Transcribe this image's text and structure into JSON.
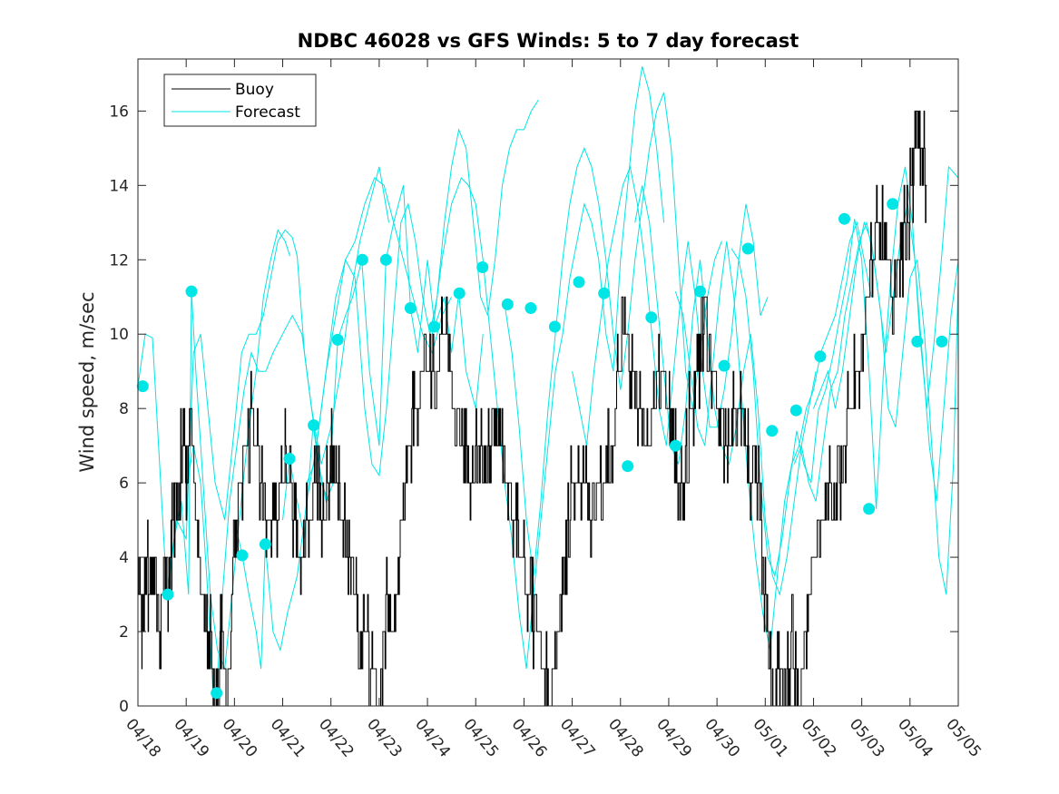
{
  "chart_data": {
    "type": "line",
    "title": "NDBC 46028 vs GFS Winds: 5 to 7 day forecast",
    "xlabel": "",
    "ylabel": "Wind speed, m/sec",
    "xlim": [
      0,
      17
    ],
    "ylim": [
      0,
      17.4
    ],
    "x_tick_labels": [
      "04/18",
      "04/19",
      "04/20",
      "04/21",
      "04/22",
      "04/23",
      "04/24",
      "04/25",
      "04/26",
      "04/27",
      "04/28",
      "04/29",
      "04/30",
      "05/01",
      "05/02",
      "05/03",
      "05/04",
      "05/05"
    ],
    "y_ticks": [
      0,
      2,
      4,
      6,
      8,
      10,
      12,
      14,
      16
    ],
    "grid": false,
    "legend_position": "top-left",
    "colors": {
      "buoy": "#000000",
      "forecast": "#00e5e5",
      "axes": "#262626"
    },
    "buoy_anchor_points": {
      "x": [
        0.0,
        0.08,
        0.15,
        0.25,
        0.35,
        0.45,
        0.55,
        0.65,
        0.72,
        0.82,
        0.95,
        1.02,
        1.1,
        1.2,
        1.32,
        1.45,
        1.55,
        1.62,
        1.72,
        1.85,
        1.98,
        2.1,
        2.25,
        2.4,
        2.55,
        2.7,
        2.85,
        3.0,
        3.12,
        3.25,
        3.4,
        3.55,
        3.7,
        3.85,
        4.0,
        4.1,
        4.25,
        4.4,
        4.5,
        4.6,
        4.7,
        4.85,
        5.0,
        5.15,
        5.3,
        5.45,
        5.6,
        5.75,
        5.95,
        6.15,
        6.35,
        6.55,
        6.75,
        6.9,
        7.05,
        7.2,
        7.35,
        7.5,
        7.65,
        7.8,
        7.95,
        8.1,
        8.25,
        8.4,
        8.55,
        8.7,
        8.85,
        9.0,
        9.2,
        9.4,
        9.6,
        9.8,
        9.95,
        10.1,
        10.25,
        10.4,
        10.55,
        10.7,
        10.85,
        11.0,
        11.1,
        11.2,
        11.3,
        11.45,
        11.6,
        11.75,
        11.9,
        12.05,
        12.2,
        12.35,
        12.5,
        12.6,
        12.7,
        12.8,
        12.9,
        13.0,
        13.1,
        13.2,
        13.3,
        13.4,
        13.55,
        13.7,
        13.85,
        14.0,
        14.15,
        14.3,
        14.45,
        14.6,
        14.75,
        14.9,
        15.05,
        15.2,
        15.35,
        15.5,
        15.65,
        15.8,
        15.95,
        16.05,
        16.15,
        16.25,
        16.35
      ],
      "y": [
        4,
        2,
        4,
        3,
        4,
        2,
        4,
        3,
        5,
        6,
        7,
        6,
        8,
        5,
        3,
        2,
        1,
        0,
        2,
        0,
        4,
        6,
        7,
        8,
        6,
        5,
        5,
        7,
        6,
        5,
        4,
        5,
        6,
        5,
        7,
        6,
        5,
        4,
        3,
        2,
        2,
        1,
        0,
        3,
        2,
        5,
        7,
        8,
        9,
        9,
        10,
        8,
        7,
        6,
        7,
        6,
        8,
        7,
        6,
        5,
        4,
        3,
        2,
        1,
        0,
        2,
        4,
        6,
        6,
        5,
        6,
        7,
        9,
        10,
        9,
        8,
        7,
        8,
        9,
        8,
        7,
        6,
        6,
        8,
        9,
        11,
        9,
        8,
        7,
        8,
        8,
        7,
        6,
        7,
        5,
        3,
        1,
        0,
        1,
        0,
        2,
        0,
        2,
        4,
        5,
        6,
        5,
        7,
        8,
        9,
        10,
        12,
        13,
        12,
        11,
        12,
        13,
        14,
        16,
        15,
        14
      ]
    },
    "forecast_dots": {
      "x": [
        0.1,
        0.62,
        1.11,
        1.63,
        2.16,
        2.64,
        3.14,
        3.64,
        4.14,
        4.65,
        5.14,
        5.65,
        6.14,
        6.66,
        7.14,
        7.66,
        8.14,
        8.64,
        9.14,
        9.66,
        10.15,
        10.64,
        11.14,
        11.65,
        12.15,
        12.64,
        13.14,
        13.64,
        14.14,
        14.64,
        15.15,
        15.64,
        16.15,
        16.66
      ],
      "y": [
        8.6,
        3.0,
        11.15,
        0.35,
        4.05,
        4.35,
        6.65,
        7.55,
        9.85,
        12.0,
        12.0,
        10.7,
        10.2,
        11.1,
        11.8,
        10.8,
        10.7,
        10.2,
        11.4,
        11.1,
        6.45,
        10.45,
        7.0,
        11.15,
        9.15,
        12.3,
        7.4,
        7.95,
        9.4,
        13.1,
        5.3,
        13.5,
        9.8,
        9.8
      ]
    },
    "forecast_tracks": [
      {
        "x": [
          0.0,
          0.15,
          0.3,
          0.45,
          0.6,
          0.8,
          1.0,
          1.15,
          1.3,
          1.45,
          1.6,
          1.8,
          2.0,
          2.15,
          2.3,
          2.45,
          2.6,
          2.75,
          2.9,
          3.05,
          3.2,
          3.3,
          3.45,
          3.6,
          3.75,
          3.9,
          4.05
        ],
        "y": [
          8.6,
          10.0,
          9.9,
          6.5,
          3.0,
          5.0,
          4.5,
          9.5,
          10.0,
          8.0,
          6.0,
          5.0,
          7.5,
          9.5,
          10.0,
          10.0,
          10.5,
          11.5,
          12.5,
          12.8,
          12.6,
          12.1,
          9.5,
          8.0,
          6.5,
          5.5,
          6.0
        ]
      },
      {
        "x": [
          0.5,
          0.62,
          0.75,
          0.9,
          1.05,
          1.11,
          1.2,
          1.35,
          1.5,
          1.65,
          1.8,
          1.95,
          2.1,
          2.3,
          2.45,
          2.6,
          2.75,
          2.9,
          3.05,
          3.15
        ],
        "y": [
          3.0,
          3.0,
          4.5,
          5.5,
          3.0,
          11.15,
          9.0,
          6.0,
          3.0,
          1.5,
          1.0,
          3.0,
          5.0,
          7.5,
          9.0,
          11.0,
          12.0,
          12.8,
          12.5,
          12.1
        ]
      },
      {
        "x": [
          1.0,
          1.15,
          1.3,
          1.45,
          1.55,
          1.63,
          1.75,
          1.9,
          2.05,
          2.2,
          2.35,
          2.5,
          2.65,
          2.8,
          3.0,
          3.2,
          3.4,
          3.6,
          3.8,
          4.0,
          4.2,
          4.4,
          4.6,
          4.8,
          5.0,
          5.2
        ],
        "y": [
          5.8,
          7.0,
          6.0,
          3.0,
          0.5,
          0.35,
          3.0,
          5.5,
          7.0,
          8.5,
          9.5,
          9.0,
          9.0,
          9.5,
          10.0,
          10.5,
          10.0,
          8.0,
          6.5,
          7.5,
          9.0,
          11.0,
          12.5,
          13.5,
          14.5,
          13.0
        ]
      },
      {
        "x": [
          2.0,
          2.16,
          2.3,
          2.45,
          2.55,
          2.64,
          2.8,
          2.95,
          3.1,
          3.3,
          3.5,
          3.7,
          3.9,
          4.1,
          4.3,
          4.5,
          4.7,
          4.9,
          5.1,
          5.3,
          5.5,
          5.7,
          5.9,
          6.1,
          6.3,
          6.5
        ],
        "y": [
          5.0,
          4.05,
          3.0,
          2.0,
          1.0,
          4.35,
          2.0,
          1.5,
          2.5,
          3.5,
          5.5,
          7.0,
          9.0,
          10.5,
          12.0,
          12.5,
          13.5,
          14.2,
          14.0,
          13.0,
          12.0,
          11.0,
          10.0,
          9.5,
          10.5,
          11.0
        ]
      },
      {
        "x": [
          3.0,
          3.14,
          3.3,
          3.45,
          3.63,
          3.8,
          3.95,
          4.14,
          4.3,
          4.45,
          4.64,
          4.8,
          5.0,
          5.14,
          5.3,
          5.5,
          5.65,
          5.8,
          6.0,
          6.15,
          6.35,
          6.5,
          6.65,
          6.8,
          7.0,
          7.15
        ],
        "y": [
          5.0,
          6.65,
          5.5,
          4.5,
          7.55,
          6.0,
          5.5,
          9.85,
          10.5,
          11.0,
          12.0,
          9.0,
          7.0,
          12.0,
          13.0,
          14.0,
          10.7,
          9.5,
          12.0,
          10.2,
          11.0,
          9.5,
          11.1,
          9.0,
          8.0,
          10.0
        ]
      },
      {
        "x": [
          3.5,
          3.65,
          3.8,
          3.95,
          4.1,
          4.3,
          4.5,
          4.7,
          4.85,
          5.0,
          5.15,
          5.3,
          5.45,
          5.6,
          5.75,
          5.9,
          6.05,
          6.2,
          6.35,
          6.5,
          6.65,
          6.8,
          6.95,
          7.1,
          7.25,
          7.4,
          7.55,
          7.7,
          7.85,
          8.0,
          8.15,
          8.3
        ],
        "y": [
          6.0,
          6.5,
          8.0,
          9.5,
          11.0,
          12.0,
          11.5,
          8.0,
          6.5,
          6.2,
          8.0,
          10.5,
          13.0,
          13.5,
          12.5,
          11.0,
          10.0,
          11.0,
          13.0,
          14.5,
          15.5,
          15.0,
          13.0,
          11.0,
          10.5,
          12.0,
          14.0,
          15.0,
          15.5,
          15.5,
          16.0,
          16.3
        ]
      },
      {
        "x": [
          6.1,
          6.3,
          6.5,
          6.7,
          6.85,
          7.0,
          7.15,
          7.3,
          7.45,
          7.6,
          7.75,
          7.9,
          8.05,
          8.2,
          8.35,
          8.5,
          8.65,
          8.8,
          8.95,
          9.1,
          9.25,
          9.4,
          9.55,
          9.7,
          9.85,
          10.0,
          10.15,
          10.3,
          10.45,
          10.6,
          10.75,
          10.9
        ],
        "y": [
          10.0,
          12.0,
          13.5,
          14.2,
          14.0,
          13.5,
          12.0,
          10.0,
          8.0,
          6.0,
          4.5,
          2.5,
          1.0,
          3.0,
          5.0,
          7.0,
          9.0,
          10.0,
          11.5,
          12.5,
          13.5,
          13.0,
          12.0,
          10.0,
          9.0,
          12.0,
          14.0,
          16.0,
          17.2,
          16.5,
          15.0,
          13.0
        ]
      },
      {
        "x": [
          7.6,
          7.75,
          7.9,
          8.05,
          8.2,
          8.35,
          8.5,
          8.65,
          8.8,
          8.95,
          9.1,
          9.25,
          9.4,
          9.55,
          9.7,
          9.85,
          10.0,
          10.15,
          10.3,
          10.45,
          10.6,
          10.75,
          10.9,
          11.05,
          11.2,
          11.35,
          11.5,
          11.65,
          11.8,
          11.95,
          12.1
        ],
        "y": [
          10.8,
          9.5,
          7.5,
          5.0,
          3.5,
          5.5,
          8.0,
          10.0,
          12.0,
          13.5,
          14.5,
          15.0,
          14.5,
          13.5,
          12.0,
          10.0,
          8.5,
          10.0,
          12.0,
          13.5,
          15.0,
          16.0,
          16.5,
          15.0,
          12.0,
          9.0,
          8.0,
          9.5,
          11.0,
          12.0,
          12.5
        ]
      },
      {
        "x": [
          9.0,
          9.15,
          9.3,
          9.45,
          9.6,
          9.75,
          9.9,
          10.05,
          10.2,
          10.35,
          10.5,
          10.65,
          10.8,
          10.95,
          11.1,
          11.25,
          11.4,
          11.55,
          11.7,
          11.85,
          12.0,
          12.15,
          12.3,
          12.45,
          12.6,
          12.75,
          12.9,
          13.05
        ],
        "y": [
          9.0,
          8.0,
          7.0,
          9.0,
          10.5,
          12.0,
          13.0,
          14.0,
          14.5,
          13.5,
          12.0,
          10.0,
          8.0,
          7.0,
          9.0,
          11.0,
          12.5,
          11.0,
          9.0,
          7.5,
          7.5,
          8.5,
          10.0,
          12.0,
          13.5,
          12.5,
          10.5,
          11.0
        ]
      },
      {
        "x": [
          10.3,
          10.45,
          10.6,
          10.75,
          10.9,
          11.05,
          11.2,
          11.35,
          11.5,
          11.65,
          11.8,
          11.95,
          12.1,
          12.25,
          12.4,
          12.55,
          12.7,
          12.85,
          13.0,
          13.15,
          13.3,
          13.45,
          13.6,
          13.75,
          13.9,
          14.05
        ],
        "y": [
          13.0,
          14.0,
          13.0,
          11.0,
          9.0,
          7.0,
          6.5,
          8.0,
          10.5,
          12.0,
          10.0,
          8.0,
          7.0,
          6.5,
          7.5,
          9.0,
          10.0,
          8.0,
          5.0,
          3.5,
          3.0,
          4.0,
          5.5,
          7.0,
          8.0,
          9.0
        ]
      },
      {
        "x": [
          11.14,
          11.3,
          11.45,
          11.6,
          11.75,
          11.9,
          12.05,
          12.2,
          12.35,
          12.5,
          12.65,
          12.8,
          12.95,
          13.1,
          13.25,
          13.4,
          13.55,
          13.7,
          13.85,
          14.0,
          14.15,
          14.3,
          14.45,
          14.6,
          14.75,
          14.9,
          15.05,
          15.2
        ],
        "y": [
          11.15,
          10.5,
          9.0,
          7.5,
          7.0,
          9.0,
          11.0,
          12.5,
          11.0,
          8.5,
          6.0,
          4.0,
          2.5,
          1.5,
          3.5,
          5.5,
          6.5,
          7.0,
          8.0,
          8.5,
          9.5,
          10.0,
          10.5,
          11.5,
          12.5,
          13.0,
          12.0,
          11.0
        ]
      },
      {
        "x": [
          12.3,
          12.45,
          12.6,
          12.75,
          12.9,
          13.05,
          13.2,
          13.35,
          13.5,
          13.65,
          13.8,
          13.95,
          14.1,
          14.25,
          14.4,
          14.55,
          14.7,
          14.85,
          15.0,
          15.15,
          15.3,
          15.45,
          15.6,
          15.75,
          15.9,
          16.05,
          16.2,
          16.35,
          16.5,
          16.65,
          16.8,
          17.0
        ],
        "y": [
          12.3,
          12.0,
          11.0,
          9.0,
          6.0,
          4.0,
          3.5,
          4.5,
          6.0,
          7.4,
          6.5,
          6.0,
          7.95,
          8.5,
          9.4,
          10.5,
          11.5,
          13.1,
          12.0,
          9.0,
          5.3,
          9.0,
          11.5,
          13.5,
          14.5,
          13.0,
          10.0,
          8.0,
          9.8,
          12.0,
          14.5,
          14.2
        ]
      },
      {
        "x": [
          13.6,
          13.75,
          13.9,
          14.05,
          14.2,
          14.35,
          14.5,
          14.65,
          14.8,
          14.95,
          15.1,
          15.25,
          15.4,
          15.55,
          15.7,
          15.85,
          16.0,
          16.15,
          16.3,
          16.45,
          16.6,
          16.75,
          16.9,
          17.0
        ],
        "y": [
          6.5,
          7.0,
          6.0,
          5.5,
          7.0,
          8.5,
          9.0,
          10.5,
          11.5,
          12.5,
          13.0,
          12.0,
          10.5,
          8.0,
          7.5,
          9.5,
          11.5,
          12.0,
          10.0,
          7.0,
          4.0,
          3.0,
          6.5,
          11.5
        ]
      },
      {
        "x": [
          14.0,
          14.15,
          14.3,
          14.45,
          14.6,
          14.75,
          14.9,
          15.05,
          15.2,
          15.35,
          15.5,
          15.65,
          15.8,
          15.95,
          16.1,
          16.25,
          16.4,
          16.55,
          16.7,
          16.85,
          17.0
        ],
        "y": [
          8.0,
          8.5,
          9.0,
          8.0,
          9.0,
          10.5,
          12.0,
          13.0,
          12.5,
          11.0,
          9.5,
          11.0,
          12.5,
          13.5,
          12.0,
          9.5,
          7.0,
          5.5,
          8.0,
          10.5,
          12.0
        ]
      }
    ]
  }
}
